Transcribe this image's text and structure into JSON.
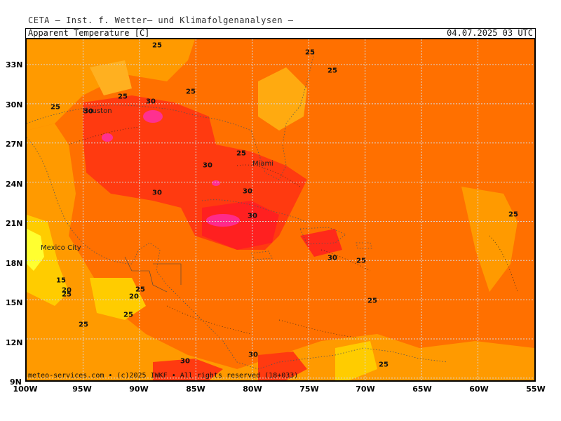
{
  "header": {
    "source_line": "CETA — Inst. f. Wetter— und Klimafolgenanalysen —",
    "parameter": "Apparent Temperature [C]",
    "run_time": "04.07.2025 03 UTC"
  },
  "map": {
    "lon_labels": [
      "100W",
      "95W",
      "90W",
      "85W",
      "80W",
      "75W",
      "70W",
      "65W",
      "60W",
      "55W"
    ],
    "lat_labels": [
      "33N",
      "30N",
      "27N",
      "24N",
      "21N",
      "18N",
      "15N",
      "12N",
      "9N"
    ],
    "contour_labels": [
      "25",
      "25",
      "25",
      "30",
      "25",
      "30",
      "25",
      "30",
      "25",
      "30",
      "30",
      "30",
      "25",
      "25",
      "30",
      "25",
      "15",
      "20",
      "25",
      "20",
      "25",
      "25",
      "25",
      "25",
      "30",
      "30",
      "25"
    ],
    "cities": [
      "Houston",
      "Miami",
      "Mexico City"
    ],
    "credit": "meteo-services.com • (c)2025 IWKF • All rights reserved (18+033)",
    "colors": {
      "low_15": "#ffff30",
      "t20": "#ffcc00",
      "t25": "#ff9a00",
      "t28": "#ff7000",
      "t30": "#ff4000",
      "t32": "#ff1a2a",
      "t35": "#ff2080",
      "grid": "#cfcfcf"
    }
  }
}
